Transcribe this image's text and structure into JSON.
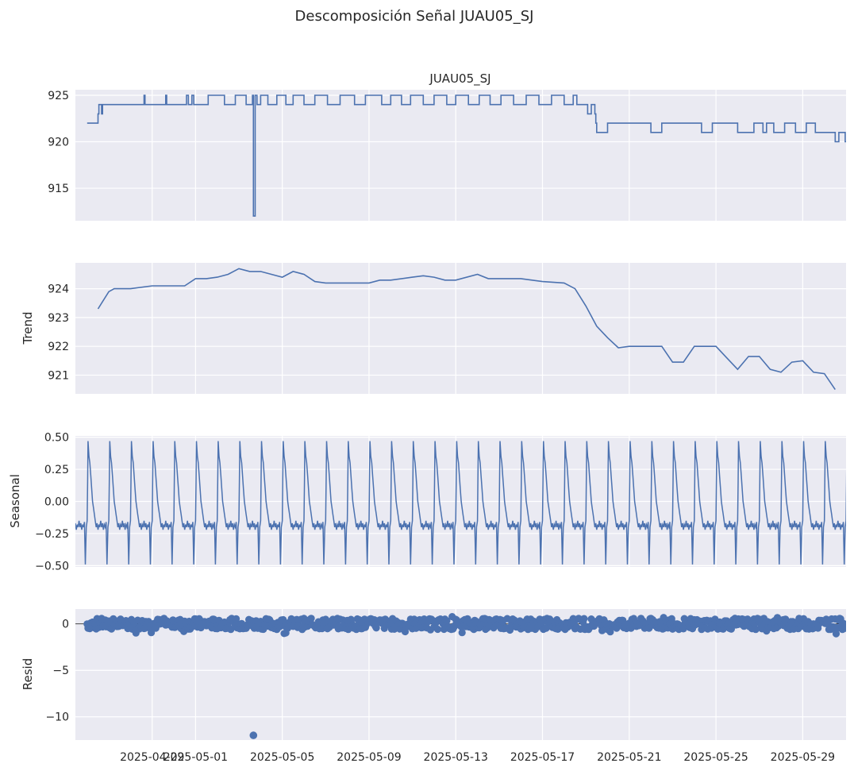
{
  "figure": {
    "title": "Descomposición Señal JUAU05_SJ",
    "background": "#ffffff",
    "panel_background": "#EAEAF2",
    "grid_color": "#ffffff",
    "line_color": "#4C72B0"
  },
  "chart_data": [
    {
      "type": "line",
      "panel": "observed",
      "title": "JUAU05_SJ",
      "ylabel": "",
      "ylim": [
        911.5,
        925.6
      ],
      "yticks": [
        915,
        920,
        925
      ],
      "ytick_labels": [
        "915",
        "920",
        "925"
      ],
      "x": [
        "2025-04-26 00:00",
        "2025-04-26 12:00",
        "2025-04-26 13:00",
        "2025-04-26 16:00",
        "2025-04-26 17:00",
        "2025-04-27 00:00",
        "2025-04-28 14:00",
        "2025-04-28 15:00",
        "2025-04-28 16:00",
        "2025-04-29 14:00",
        "2025-04-29 15:00",
        "2025-04-29 16:00",
        "2025-04-30 12:00",
        "2025-04-30 14:00",
        "2025-04-30 16:00",
        "2025-04-30 20:00",
        "2025-04-30 22:00",
        "2025-05-01 12:00",
        "2025-05-01 14:00",
        "2025-05-02 00:00",
        "2025-05-02 08:00",
        "2025-05-02 20:00",
        "2025-05-03 08:00",
        "2025-05-03 15:00",
        "2025-05-03 16:00",
        "2025-05-03 18:00",
        "2025-05-03 20:00",
        "2025-05-04 00:00",
        "2025-05-04 08:00",
        "2025-05-04 18:00",
        "2025-05-05 04:00",
        "2025-05-05 12:00",
        "2025-05-06 00:00",
        "2025-05-06 12:00",
        "2025-05-07 02:00",
        "2025-05-07 16:00",
        "2025-05-08 08:00",
        "2025-05-08 20:00",
        "2025-05-09 14:00",
        "2025-05-10 00:00",
        "2025-05-10 12:00",
        "2025-05-10 22:00",
        "2025-05-11 12:00",
        "2025-05-12 00:00",
        "2025-05-12 14:00",
        "2025-05-13 00:00",
        "2025-05-13 14:00",
        "2025-05-14 02:00",
        "2025-05-14 14:00",
        "2025-05-15 02:00",
        "2025-05-15 16:00",
        "2025-05-16 06:00",
        "2025-05-16 20:00",
        "2025-05-17 10:00",
        "2025-05-18 00:00",
        "2025-05-18 10:00",
        "2025-05-18 14:00",
        "2025-05-18 16:00",
        "2025-05-19 02:00",
        "2025-05-19 06:00",
        "2025-05-19 10:00",
        "2025-05-19 11:00",
        "2025-05-19 12:00",
        "2025-05-20 00:00",
        "2025-05-20 12:00",
        "2025-05-21 00:00",
        "2025-05-21 12:00",
        "2025-05-22 00:00",
        "2025-05-22 12:00",
        "2025-05-23 06:00",
        "2025-05-23 18:00",
        "2025-05-24 08:00",
        "2025-05-24 20:00",
        "2025-05-25 12:00",
        "2025-05-26 00:00",
        "2025-05-26 18:00",
        "2025-05-27 04:00",
        "2025-05-27 08:00",
        "2025-05-27 16:00",
        "2025-05-28 04:00",
        "2025-05-28 16:00",
        "2025-05-29 04:00",
        "2025-05-29 14:00",
        "2025-05-30 00:00",
        "2025-05-30 12:00",
        "2025-05-30 16:00",
        "2025-05-30 23:00"
      ],
      "y": [
        922,
        923,
        924,
        923,
        924,
        924,
        924,
        925,
        924,
        924,
        925,
        924,
        924,
        925,
        924,
        925,
        924,
        924,
        925,
        925,
        924,
        925,
        924,
        925,
        912,
        925,
        924,
        925,
        924,
        925,
        924,
        925,
        924,
        925,
        924,
        925,
        924,
        925,
        924,
        925,
        924,
        925,
        924,
        925,
        924,
        925,
        924,
        925,
        924,
        925,
        924,
        925,
        924,
        925,
        924,
        925,
        924,
        924,
        923,
        924,
        923,
        922,
        921,
        922,
        922,
        922,
        922,
        921,
        922,
        922,
        922,
        921,
        922,
        922,
        921,
        922,
        921,
        922,
        921,
        922,
        921,
        922,
        921,
        921,
        920,
        921,
        920
      ]
    },
    {
      "type": "line",
      "panel": "trend",
      "ylabel": "Trend",
      "ylim": [
        920.35,
        924.9
      ],
      "yticks": [
        921,
        922,
        923,
        924
      ],
      "ytick_labels": [
        "921",
        "922",
        "923",
        "924"
      ],
      "x": [
        "2025-04-26 12:00",
        "2025-04-27 00:00",
        "2025-04-27 06:00",
        "2025-04-27 12:00",
        "2025-04-28 00:00",
        "2025-04-29 00:00",
        "2025-04-29 12:00",
        "2025-04-30 00:00",
        "2025-04-30 12:00",
        "2025-05-01 00:00",
        "2025-05-01 12:00",
        "2025-05-02 00:00",
        "2025-05-02 12:00",
        "2025-05-03 00:00",
        "2025-05-03 12:00",
        "2025-05-04 00:00",
        "2025-05-04 12:00",
        "2025-05-05 00:00",
        "2025-05-05 12:00",
        "2025-05-06 00:00",
        "2025-05-06 12:00",
        "2025-05-07 00:00",
        "2025-05-08 00:00",
        "2025-05-09 00:00",
        "2025-05-09 12:00",
        "2025-05-10 00:00",
        "2025-05-11 00:00",
        "2025-05-11 12:00",
        "2025-05-12 00:00",
        "2025-05-12 12:00",
        "2025-05-13 00:00",
        "2025-05-14 00:00",
        "2025-05-14 12:00",
        "2025-05-15 00:00",
        "2025-05-16 00:00",
        "2025-05-17 00:00",
        "2025-05-18 00:00",
        "2025-05-18 12:00",
        "2025-05-19 00:00",
        "2025-05-19 12:00",
        "2025-05-20 00:00",
        "2025-05-20 12:00",
        "2025-05-21 00:00",
        "2025-05-22 00:00",
        "2025-05-22 12:00",
        "2025-05-23 00:00",
        "2025-05-23 12:00",
        "2025-05-24 00:00",
        "2025-05-24 12:00",
        "2025-05-25 00:00",
        "2025-05-25 12:00",
        "2025-05-26 00:00",
        "2025-05-26 12:00",
        "2025-05-27 00:00",
        "2025-05-27 12:00",
        "2025-05-28 00:00",
        "2025-05-28 12:00",
        "2025-05-29 00:00",
        "2025-05-29 12:00",
        "2025-05-30 00:00",
        "2025-05-30 12:00"
      ],
      "y": [
        923.3,
        923.9,
        924.0,
        924.0,
        924.0,
        924.1,
        924.1,
        924.1,
        924.1,
        924.35,
        924.35,
        924.4,
        924.5,
        924.7,
        924.6,
        924.6,
        924.5,
        924.4,
        924.6,
        924.5,
        924.25,
        924.2,
        924.2,
        924.2,
        924.3,
        924.3,
        924.4,
        924.45,
        924.4,
        924.3,
        924.3,
        924.5,
        924.35,
        924.35,
        924.35,
        924.25,
        924.2,
        924.0,
        923.4,
        922.7,
        922.3,
        921.95,
        922.0,
        922.0,
        922.0,
        921.45,
        921.45,
        922.0,
        922.0,
        922.0,
        921.6,
        921.2,
        921.65,
        921.65,
        921.2,
        921.1,
        921.45,
        921.5,
        921.1,
        921.05,
        920.5
      ]
    },
    {
      "type": "line",
      "panel": "seasonal",
      "ylabel": "Seasonal",
      "ylim": [
        -0.51,
        0.51
      ],
      "yticks": [
        -0.5,
        -0.25,
        0.0,
        0.25,
        0.5
      ],
      "ytick_labels": [
        "−0.50",
        "−0.25",
        "0.00",
        "0.25",
        "0.50"
      ],
      "period_days": 1,
      "cycle_shape": {
        "hours": [
          0,
          0.5,
          1,
          2,
          3,
          4,
          5,
          6,
          7,
          8,
          9,
          10,
          11,
          12,
          13,
          14,
          15,
          16,
          17,
          18,
          19,
          20,
          21,
          22,
          23,
          24
        ],
        "values": [
          -0.15,
          0.15,
          0.47,
          0.35,
          0.3,
          0.2,
          0.1,
          0.0,
          -0.05,
          -0.1,
          -0.15,
          -0.2,
          -0.17,
          -0.22,
          -0.18,
          -0.2,
          -0.15,
          -0.2,
          -0.17,
          -0.22,
          -0.18,
          -0.2,
          -0.16,
          -0.49,
          -0.2,
          -0.15
        ]
      }
    },
    {
      "type": "scatter",
      "panel": "resid",
      "ylabel": "Resid",
      "ylim": [
        -12.5,
        1.6
      ],
      "yticks": [
        -10,
        -5,
        0
      ],
      "ytick_labels": [
        "−10",
        "−5",
        "0"
      ],
      "zero_line": true,
      "outlier": {
        "x": "2025-05-03 16:00",
        "y": -12.0
      }
    }
  ],
  "x_axis": {
    "range": [
      "2025-04-25 11:00",
      "2025-05-31 00:00"
    ],
    "ticks": [
      "2025-04-29",
      "2025-05-01",
      "2025-05-05",
      "2025-05-09",
      "2025-05-13",
      "2025-05-17",
      "2025-05-21",
      "2025-05-25",
      "2025-05-29"
    ],
    "tick_labels": [
      "2025-04-29",
      "2025-05-01",
      "2025-05-05",
      "2025-05-09",
      "2025-05-13",
      "2025-05-17",
      "2025-05-21",
      "2025-05-25",
      "2025-05-29"
    ]
  }
}
